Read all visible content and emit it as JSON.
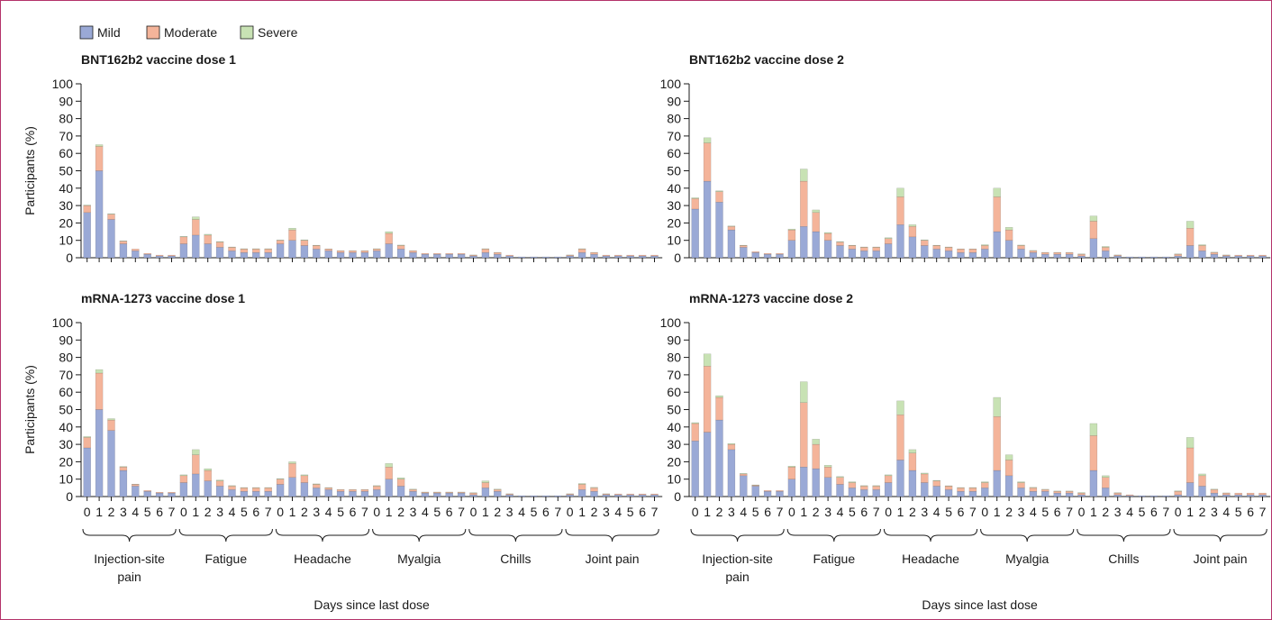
{
  "legend": {
    "items": [
      {
        "label": "Mild",
        "color": "#9aa9d6"
      },
      {
        "label": "Moderate",
        "color": "#f4b49a"
      },
      {
        "label": "Severe",
        "color": "#c8e2b4"
      }
    ]
  },
  "chart_data": [
    {
      "type": "bar",
      "title": "BNT162b2 vaccine dose 1",
      "xlabel": "Days since last dose",
      "ylabel": "Participants (%)",
      "ylim": [
        0,
        100
      ],
      "yticks": [
        0,
        10,
        20,
        30,
        40,
        50,
        60,
        70,
        80,
        90,
        100
      ],
      "groups": [
        "Injection-site pain",
        "Fatigue",
        "Headache",
        "Myalgia",
        "Chills",
        "Joint pain"
      ],
      "x_tick_labels": [
        "0",
        "1",
        "2",
        "3",
        "4",
        "5",
        "6",
        "7"
      ],
      "stacked": true,
      "series": [
        {
          "name": "Mild",
          "values": [
            [
              26,
              50,
              22,
              8,
              4,
              2,
              1,
              1
            ],
            [
              8,
              13,
              8,
              6,
              4,
              3,
              3,
              3
            ],
            [
              8,
              10,
              7,
              5,
              4,
              3,
              3,
              3
            ],
            [
              4,
              8,
              5,
              3,
              2,
              2,
              2,
              2
            ],
            [
              1,
              3,
              2,
              1,
              0.5,
              0.5,
              0.5,
              0.5
            ],
            [
              1,
              3,
              2,
              1,
              1,
              1,
              1,
              1
            ]
          ]
        },
        {
          "name": "Moderate",
          "values": [
            [
              4,
              14,
              3,
              1.5,
              1,
              0.5,
              0.5,
              0.5
            ],
            [
              4,
              9,
              5,
              3,
              2,
              2,
              2,
              2
            ],
            [
              2,
              6,
              3,
              2,
              1,
              1,
              1,
              1
            ],
            [
              1,
              6,
              2,
              1,
              0.5,
              0.5,
              0.5,
              0.5
            ],
            [
              0.5,
              2,
              1,
              0.5,
              0,
              0,
              0,
              0
            ],
            [
              0.5,
              2,
              1,
              0.5,
              0.5,
              0.5,
              0.5,
              0.5
            ]
          ]
        },
        {
          "name": "Severe",
          "values": [
            [
              0.3,
              1,
              0.3,
              0.2,
              0,
              0,
              0,
              0
            ],
            [
              0.3,
              1.5,
              0.5,
              0.3,
              0.2,
              0.2,
              0.2,
              0.2
            ],
            [
              0.2,
              1,
              0.3,
              0.2,
              0.1,
              0.1,
              0.1,
              0.1
            ],
            [
              0.2,
              1,
              0.3,
              0.1,
              0,
              0,
              0,
              0
            ],
            [
              0.1,
              0.2,
              0.1,
              0,
              0,
              0,
              0,
              0
            ],
            [
              0.1,
              0.2,
              0.1,
              0,
              0,
              0,
              0,
              0
            ]
          ]
        }
      ]
    },
    {
      "type": "bar",
      "title": "BNT162b2 vaccine dose 2",
      "xlabel": "Days since last dose",
      "ylabel": "",
      "ylim": [
        0,
        100
      ],
      "yticks": [
        0,
        10,
        20,
        30,
        40,
        50,
        60,
        70,
        80,
        90,
        100
      ],
      "groups": [
        "Injection-site pain",
        "Fatigue",
        "Headache",
        "Myalgia",
        "Chills",
        "Joint pain"
      ],
      "x_tick_labels": [
        "0",
        "1",
        "2",
        "3",
        "4",
        "5",
        "6",
        "7"
      ],
      "stacked": true,
      "series": [
        {
          "name": "Mild",
          "values": [
            [
              28,
              44,
              32,
              16,
              6,
              3,
              2,
              2
            ],
            [
              10,
              18,
              15,
              10,
              7,
              5,
              4,
              4
            ],
            [
              8,
              19,
              12,
              7,
              5,
              4,
              3,
              3
            ],
            [
              5,
              15,
              10,
              5,
              3,
              2,
              2,
              2
            ],
            [
              1,
              11,
              4,
              1,
              0.5,
              0.5,
              0.5,
              0.5
            ],
            [
              1,
              7,
              4,
              2,
              1,
              1,
              1,
              1
            ]
          ]
        },
        {
          "name": "Moderate",
          "values": [
            [
              6,
              22,
              6,
              2,
              1,
              0.5,
              0.5,
              0.5
            ],
            [
              6,
              26,
              11,
              4,
              2,
              2,
              2,
              2
            ],
            [
              3,
              16,
              6,
              3,
              2,
              2,
              2,
              2
            ],
            [
              2,
              20,
              6,
              2,
              1,
              1,
              1,
              1
            ],
            [
              1,
              10,
              2,
              0.5,
              0,
              0,
              0,
              0
            ],
            [
              1,
              10,
              3,
              1,
              0.5,
              0.5,
              0.5,
              0.5
            ]
          ]
        },
        {
          "name": "Severe",
          "values": [
            [
              0.5,
              3,
              0.5,
              0.3,
              0.2,
              0,
              0,
              0
            ],
            [
              0.5,
              7,
              1.5,
              0.5,
              0.3,
              0.2,
              0.2,
              0.2
            ],
            [
              0.5,
              5,
              1,
              0.3,
              0.2,
              0.2,
              0.1,
              0.1
            ],
            [
              0.5,
              5,
              1.5,
              0.3,
              0.2,
              0.1,
              0.1,
              0.1
            ],
            [
              0.2,
              3,
              0.5,
              0.1,
              0,
              0,
              0,
              0
            ],
            [
              0.2,
              4,
              0.5,
              0.2,
              0.1,
              0,
              0,
              0
            ]
          ]
        }
      ]
    },
    {
      "type": "bar",
      "title": "mRNA-1273 vaccine dose 1",
      "xlabel": "Days since last dose",
      "ylabel": "Participants (%)",
      "ylim": [
        0,
        100
      ],
      "yticks": [
        0,
        10,
        20,
        30,
        40,
        50,
        60,
        70,
        80,
        90,
        100
      ],
      "groups": [
        "Injection-site pain",
        "Fatigue",
        "Headache",
        "Myalgia",
        "Chills",
        "Joint pain"
      ],
      "x_tick_labels": [
        "0",
        "1",
        "2",
        "3",
        "4",
        "5",
        "6",
        "7"
      ],
      "stacked": true,
      "series": [
        {
          "name": "Mild",
          "values": [
            [
              28,
              50,
              38,
              15,
              6,
              3,
              2,
              2
            ],
            [
              8,
              13,
              9,
              6,
              4,
              3,
              3,
              3
            ],
            [
              7,
              11,
              8,
              5,
              4,
              3,
              3,
              3
            ],
            [
              4,
              10,
              6,
              3,
              2,
              2,
              2,
              2
            ],
            [
              1,
              5,
              3,
              1,
              0.5,
              0.5,
              0.5,
              0.5
            ],
            [
              1,
              4,
              3,
              1,
              1,
              1,
              1,
              1
            ]
          ]
        },
        {
          "name": "Moderate",
          "values": [
            [
              6,
              21,
              6,
              2,
              1,
              0.5,
              0.5,
              0.5
            ],
            [
              4,
              11,
              6,
              3,
              2,
              2,
              2,
              2
            ],
            [
              3,
              8,
              4,
              2,
              1,
              1,
              1,
              1
            ],
            [
              2,
              7,
              4,
              1,
              0.5,
              0.5,
              0.5,
              0.5
            ],
            [
              1,
              3,
              1,
              0.5,
              0,
              0,
              0,
              0
            ],
            [
              0.5,
              3,
              2,
              0.5,
              0.5,
              0.5,
              0.5,
              0.5
            ]
          ]
        },
        {
          "name": "Severe",
          "values": [
            [
              0.5,
              2,
              0.8,
              0.3,
              0.1,
              0,
              0,
              0
            ],
            [
              0.5,
              3,
              1,
              0.5,
              0.3,
              0.2,
              0.2,
              0.2
            ],
            [
              0.3,
              1,
              0.5,
              0.3,
              0.2,
              0.1,
              0.1,
              0.1
            ],
            [
              0.3,
              2,
              0.8,
              0.3,
              0.1,
              0.1,
              0.1,
              0.1
            ],
            [
              0.2,
              1,
              0.3,
              0.1,
              0,
              0,
              0,
              0
            ],
            [
              0.1,
              0.5,
              0.3,
              0.1,
              0,
              0,
              0,
              0
            ]
          ]
        }
      ]
    },
    {
      "type": "bar",
      "title": "mRNA-1273 vaccine dose 2",
      "xlabel": "Days since last dose",
      "ylabel": "",
      "ylim": [
        0,
        100
      ],
      "yticks": [
        0,
        10,
        20,
        30,
        40,
        50,
        60,
        70,
        80,
        90,
        100
      ],
      "groups": [
        "Injection-site pain",
        "Fatigue",
        "Headache",
        "Myalgia",
        "Chills",
        "Joint pain"
      ],
      "x_tick_labels": [
        "0",
        "1",
        "2",
        "3",
        "4",
        "5",
        "6",
        "7"
      ],
      "stacked": true,
      "series": [
        {
          "name": "Mild",
          "values": [
            [
              32,
              37,
              44,
              27,
              12,
              6,
              3,
              3
            ],
            [
              10,
              17,
              16,
              11,
              7,
              5,
              4,
              4
            ],
            [
              8,
              21,
              15,
              8,
              6,
              4,
              3,
              3
            ],
            [
              5,
              15,
              12,
              5,
              3,
              3,
              2,
              2
            ],
            [
              1,
              15,
              5,
              1,
              0.5,
              0.5,
              0.5,
              0.5
            ],
            [
              1,
              8,
              6,
              2,
              1,
              1,
              1,
              1
            ]
          ]
        },
        {
          "name": "Moderate",
          "values": [
            [
              10,
              38,
              13,
              3,
              1,
              0.5,
              0.5,
              0.5
            ],
            [
              7,
              37,
              14,
              6,
              4,
              3,
              2,
              2
            ],
            [
              4,
              26,
              10,
              5,
              3,
              2,
              2,
              2
            ],
            [
              3,
              31,
              9,
              3,
              2,
              1,
              1,
              1
            ],
            [
              1,
              20,
              6,
              1,
              0.5,
              0,
              0,
              0
            ],
            [
              2,
              20,
              6,
              2,
              1,
              1,
              1,
              1
            ]
          ]
        },
        {
          "name": "Severe",
          "values": [
            [
              0.5,
              7,
              1,
              0.5,
              0.3,
              0.2,
              0,
              0
            ],
            [
              0.5,
              12,
              3,
              1,
              0.5,
              0.5,
              0.3,
              0.3
            ],
            [
              0.5,
              8,
              2,
              0.5,
              0.3,
              0.2,
              0.2,
              0.2
            ],
            [
              0.5,
              11,
              3,
              0.5,
              0.3,
              0.2,
              0.2,
              0.2
            ],
            [
              0.3,
              7,
              1,
              0.2,
              0,
              0,
              0,
              0
            ],
            [
              0.3,
              6,
              1,
              0.3,
              0.1,
              0,
              0,
              0
            ]
          ]
        }
      ]
    }
  ]
}
